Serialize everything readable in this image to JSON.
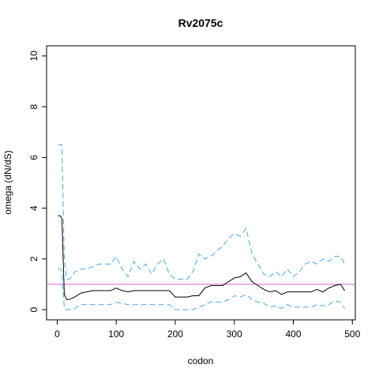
{
  "chart_data": {
    "type": "line",
    "title": "Rv2075c",
    "x_label": "codon",
    "y_label": "omega (dN/dS)",
    "x": [
      1,
      5,
      8,
      12,
      16,
      20,
      25,
      30,
      40,
      50,
      60,
      70,
      80,
      90,
      100,
      110,
      120,
      130,
      140,
      150,
      160,
      170,
      180,
      190,
      200,
      210,
      220,
      230,
      240,
      250,
      260,
      270,
      280,
      290,
      300,
      310,
      320,
      330,
      340,
      350,
      360,
      370,
      380,
      390,
      400,
      410,
      420,
      430,
      440,
      450,
      460,
      470,
      480,
      487
    ],
    "series": [
      {
        "color": "#000000",
        "dash": false,
        "values": [
          3.7,
          3.7,
          3.6,
          0.6,
          0.4,
          0.4,
          0.45,
          0.5,
          0.65,
          0.7,
          0.75,
          0.75,
          0.75,
          0.75,
          0.85,
          0.75,
          0.7,
          0.75,
          0.75,
          0.75,
          0.75,
          0.75,
          0.75,
          0.75,
          0.5,
          0.5,
          0.5,
          0.55,
          0.55,
          0.85,
          0.95,
          0.95,
          0.95,
          1.1,
          1.25,
          1.3,
          1.45,
          1.1,
          0.95,
          0.8,
          0.7,
          0.75,
          0.6,
          0.7,
          0.7,
          0.7,
          0.7,
          0.7,
          0.8,
          0.7,
          0.85,
          0.95,
          1.0,
          0.75
        ]
      },
      {
        "color": "#4aa8e0",
        "dash": true,
        "values": [
          6.5,
          6.5,
          6.5,
          2.0,
          1.2,
          1.2,
          1.3,
          1.5,
          1.6,
          1.6,
          1.7,
          1.8,
          1.8,
          1.8,
          2.1,
          1.6,
          1.3,
          1.9,
          1.6,
          1.8,
          1.4,
          1.8,
          2.0,
          1.4,
          1.2,
          1.2,
          1.2,
          1.5,
          2.2,
          2.0,
          2.1,
          2.3,
          2.5,
          2.8,
          3.0,
          2.9,
          3.2,
          2.2,
          1.8,
          1.4,
          1.3,
          1.5,
          1.3,
          1.6,
          1.3,
          1.5,
          1.8,
          1.9,
          1.8,
          2.0,
          1.9,
          2.1,
          2.1,
          1.8
        ]
      },
      {
        "color": "#4aa8e0",
        "dash": true,
        "values": [
          1.6,
          1.6,
          1.5,
          0.05,
          0.0,
          0.0,
          0.0,
          0.05,
          0.2,
          0.2,
          0.2,
          0.2,
          0.2,
          0.2,
          0.3,
          0.25,
          0.2,
          0.2,
          0.2,
          0.2,
          0.2,
          0.2,
          0.2,
          0.2,
          0.0,
          0.0,
          0.0,
          0.0,
          0.1,
          0.2,
          0.3,
          0.3,
          0.3,
          0.4,
          0.55,
          0.5,
          0.6,
          0.4,
          0.3,
          0.25,
          0.1,
          0.15,
          0.05,
          0.2,
          0.1,
          0.1,
          0.1,
          0.1,
          0.2,
          0.15,
          0.2,
          0.35,
          0.3,
          0.05
        ]
      }
    ],
    "hline": 1,
    "hline_color": "#cc66cc",
    "xlim": [
      -18,
      505
    ],
    "ylim": [
      -0.4,
      10.4
    ],
    "xticks": [
      0,
      100,
      200,
      300,
      400,
      500
    ],
    "yticks": [
      0,
      2,
      4,
      6,
      8,
      10
    ]
  }
}
